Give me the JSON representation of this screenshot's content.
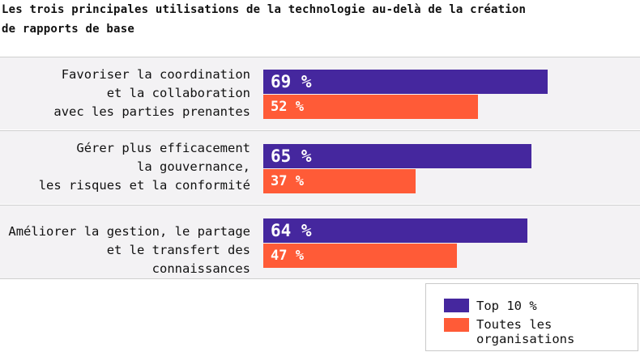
{
  "chart_data": {
    "type": "bar",
    "orientation": "horizontal",
    "title": "Les trois principales utilisations de la technologie au-delà de la création\nde rapports de base",
    "categories": [
      "Favoriser la coordination\net la collaboration\navec les parties prenantes",
      "Gérer plus efficacement\nla gouvernance,\nles risques et la conformité",
      "Améliorer la gestion, le partage\net le transfert des connaissances"
    ],
    "series": [
      {
        "name": "Top 10 %",
        "color": "#45279e",
        "values": [
          69,
          65,
          64
        ],
        "labels": [
          "69 %",
          "65 %",
          "64 %"
        ]
      },
      {
        "name": "Toutes les\norganisations",
        "color": "#ff5b37",
        "values": [
          52,
          37,
          47
        ],
        "labels": [
          "52 %",
          "37 %",
          "47 %"
        ]
      }
    ],
    "xlim": [
      0,
      100
    ],
    "grid": false,
    "legend_position": "bottom-right"
  }
}
